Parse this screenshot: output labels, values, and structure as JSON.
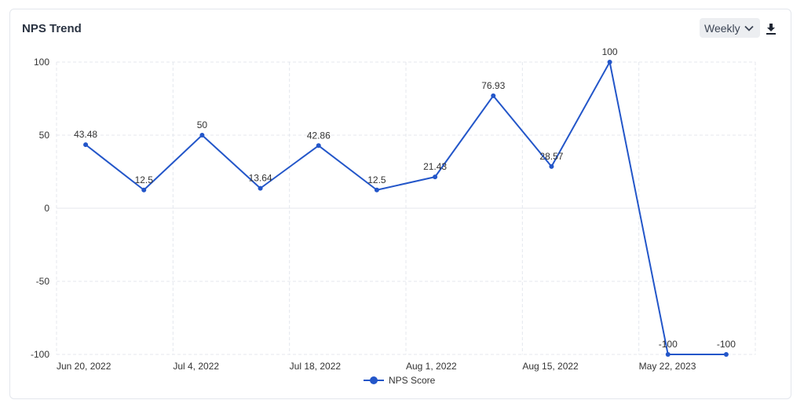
{
  "header": {
    "title": "NPS Trend",
    "period_select": {
      "selected": "Weekly"
    },
    "download_icon": "download-icon"
  },
  "colors": {
    "series": "#2356c9",
    "grid": "#e4e7ee",
    "text": "#333333"
  },
  "legend": {
    "label": "NPS Score"
  },
  "chart_data": {
    "type": "line",
    "title": "NPS Trend",
    "xlabel": "",
    "ylabel": "",
    "ylim": [
      -100,
      100
    ],
    "yticks": [
      100,
      50,
      0,
      -50,
      -100
    ],
    "xtick_labels": [
      "Jun 20, 2022",
      "Jul 4, 2022",
      "Jul 18, 2022",
      "Aug 1, 2022",
      "Aug 15, 2022",
      "May 22, 2023"
    ],
    "grid": true,
    "legend_position": "bottom",
    "series": [
      {
        "name": "NPS Score",
        "values": [
          43.48,
          12.5,
          50,
          13.64,
          42.86,
          12.5,
          21.43,
          76.93,
          28.57,
          100,
          -100,
          -100
        ],
        "labels": [
          "43.48",
          "12.5",
          "50",
          "13.64",
          "42.86",
          "12.5",
          "21.43",
          "76.93",
          "28.57",
          "100",
          "-100",
          "-100"
        ]
      }
    ]
  }
}
